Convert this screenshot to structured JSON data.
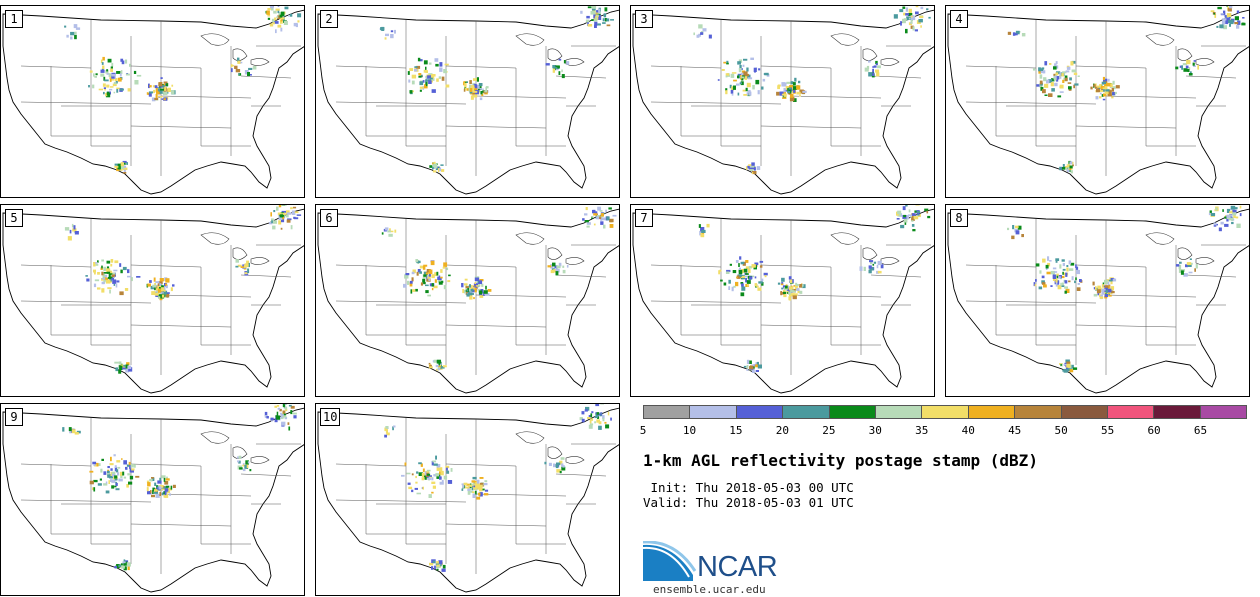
{
  "panels": [
    "1",
    "2",
    "3",
    "4",
    "5",
    "6",
    "7",
    "8",
    "9",
    "10"
  ],
  "colorbar": {
    "colors": [
      "#a0a0a0",
      "#b4bfe8",
      "#5560d6",
      "#4b9a9e",
      "#0a8a1a",
      "#b7dbb8",
      "#f2de68",
      "#efb020",
      "#b7843a",
      "#8a5a3e",
      "#f0547c",
      "#6a1a3a",
      "#a84aa4"
    ],
    "ticks": [
      "5",
      "10",
      "15",
      "20",
      "25",
      "30",
      "35",
      "40",
      "45",
      "50",
      "55",
      "60",
      "65"
    ]
  },
  "title": "1-km AGL reflectivity postage stamp (dBZ)",
  "init": " Init: Thu 2018-05-03 00 UTC",
  "valid": "Valid: Thu 2018-05-03 01 UTC",
  "logo": "NCAR",
  "url": "ensemble.ucar.edu"
}
